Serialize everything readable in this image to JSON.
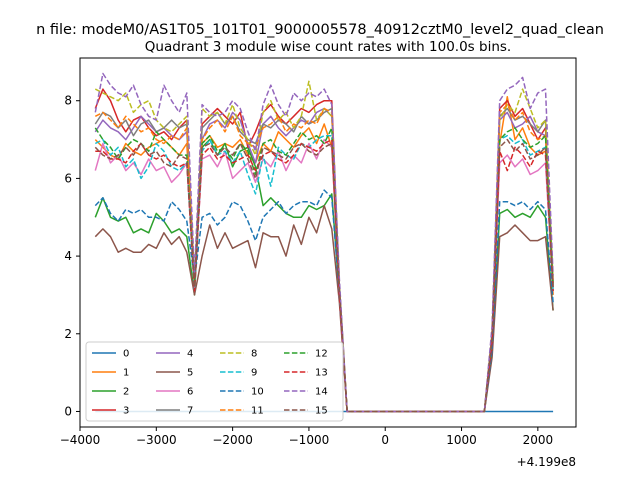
{
  "figure": {
    "suptitle": "n file: modeM0/AS1T05_101T01_9000005578_40912cztM0_level2_quad_clean",
    "title": "Quadrant 3 module wise count rates with 100.0s bins.",
    "x_offset_label": "+4.199e8"
  },
  "chart_data": {
    "type": "line",
    "title": "Quadrant 3 module wise count rates with 100.0s bins.",
    "xlabel": "",
    "ylabel": "",
    "x_offset": 419900000,
    "xlim": [
      -4000,
      2500
    ],
    "ylim": [
      -0.4,
      9.1
    ],
    "x_ticks": [
      -4000,
      -3000,
      -2000,
      -1000,
      0,
      1000,
      2000
    ],
    "x_tick_labels": [
      "−4000",
      "−3000",
      "−2000",
      "−1000",
      "0",
      "1000",
      "2000"
    ],
    "y_ticks": [
      0,
      2,
      4,
      6,
      8
    ],
    "y_tick_labels": [
      "0",
      "2",
      "4",
      "6",
      "8"
    ],
    "grid": false,
    "legend_position": "lower-left",
    "legend_columns": 4,
    "x": [
      -3800,
      -3700,
      -3600,
      -3500,
      -3400,
      -3300,
      -3200,
      -3100,
      -3000,
      -2900,
      -2800,
      -2700,
      -2600,
      -2500,
      -2400,
      -2300,
      -2200,
      -2100,
      -2000,
      -1900,
      -1800,
      -1700,
      -1600,
      -1500,
      -1400,
      -1300,
      -1200,
      -1100,
      -1000,
      -900,
      -800,
      -700,
      -600,
      -500,
      -400,
      -300,
      -200,
      -100,
      0,
      100,
      200,
      300,
      400,
      500,
      600,
      700,
      800,
      900,
      1000,
      1100,
      1200,
      1300,
      1400,
      1500,
      1600,
      1700,
      1800,
      1900,
      2000,
      2100,
      2200
    ],
    "series": [
      {
        "name": "0",
        "color": "#1f77b4",
        "style": "solid",
        "values": [
          0,
          0,
          0,
          0,
          0,
          0,
          0,
          0,
          0,
          0,
          0,
          0,
          0,
          0,
          0,
          0,
          0,
          0,
          0,
          0,
          0,
          0,
          0,
          0,
          0,
          0,
          0,
          0,
          0,
          0,
          0,
          0,
          0,
          0,
          0,
          0,
          0,
          0,
          0,
          0,
          0,
          0,
          0,
          0,
          0,
          0,
          0,
          0,
          0,
          0,
          0,
          0,
          0,
          0,
          0,
          0,
          0,
          0,
          0,
          0,
          0
        ]
      },
      {
        "name": "1",
        "color": "#ff7f0e",
        "style": "solid",
        "values": [
          7.0,
          6.8,
          6.6,
          6.5,
          6.9,
          6.7,
          6.6,
          6.8,
          6.9,
          7.0,
          6.8,
          6.6,
          6.9,
          3.3,
          6.9,
          7.1,
          6.8,
          6.9,
          6.8,
          7.0,
          6.6,
          6.4,
          6.9,
          6.7,
          7.2,
          7.0,
          6.8,
          7.1,
          7.3,
          6.9,
          7.4,
          6.8,
          3.0,
          0,
          0,
          0,
          0,
          0,
          0,
          0,
          0,
          0,
          0,
          0,
          0,
          0,
          0,
          0,
          0,
          0,
          0,
          0,
          1.8,
          6.9,
          8.1,
          7.0,
          7.3,
          6.8,
          6.6,
          6.7,
          3.0
        ]
      },
      {
        "name": "2",
        "color": "#2ca02c",
        "style": "solid",
        "values": [
          5.0,
          5.5,
          5.0,
          4.9,
          5.0,
          4.6,
          4.7,
          4.6,
          5.1,
          4.9,
          4.6,
          4.7,
          4.5,
          3.0,
          6.8,
          7.0,
          6.6,
          6.9,
          6.3,
          6.7,
          6.8,
          6.3,
          5.3,
          5.5,
          5.3,
          5.1,
          5.0,
          5.0,
          5.3,
          5.2,
          5.3,
          5.6,
          3.0,
          0,
          0,
          0,
          0,
          0,
          0,
          0,
          0,
          0,
          0,
          0,
          0,
          0,
          0,
          0,
          0,
          0,
          0,
          0,
          1.6,
          5.1,
          5.2,
          5.0,
          5.1,
          5.0,
          5.3,
          5.0,
          2.6
        ]
      },
      {
        "name": "3",
        "color": "#d62728",
        "style": "solid",
        "values": [
          7.8,
          8.3,
          8.0,
          7.5,
          7.2,
          7.5,
          7.6,
          7.3,
          7.1,
          7.2,
          7.0,
          7.3,
          7.5,
          3.3,
          7.4,
          7.6,
          7.8,
          7.6,
          7.4,
          7.7,
          6.8,
          7.2,
          7.7,
          7.9,
          7.6,
          7.4,
          7.6,
          7.8,
          7.7,
          7.9,
          8.0,
          8.0,
          3.2,
          0,
          0,
          0,
          0,
          0,
          0,
          0,
          0,
          0,
          0,
          0,
          0,
          0,
          0,
          0,
          0,
          0,
          0,
          0,
          2.0,
          7.8,
          8.0,
          7.6,
          7.8,
          7.4,
          7.0,
          7.3,
          3.3
        ]
      },
      {
        "name": "4",
        "color": "#9467bd",
        "style": "solid",
        "values": [
          7.2,
          7.5,
          7.3,
          7.2,
          7.0,
          7.3,
          7.6,
          7.4,
          7.2,
          7.3,
          7.1,
          7.0,
          7.2,
          3.3,
          7.0,
          7.4,
          7.5,
          7.3,
          7.7,
          7.5,
          6.9,
          6.4,
          7.4,
          7.6,
          7.3,
          7.1,
          7.3,
          7.5,
          7.4,
          7.7,
          7.8,
          7.6,
          3.1,
          0,
          0,
          0,
          0,
          0,
          0,
          0,
          0,
          0,
          0,
          0,
          0,
          0,
          0,
          0,
          0,
          0,
          0,
          0,
          1.9,
          7.5,
          7.7,
          7.3,
          7.4,
          7.6,
          7.2,
          7.1,
          3.2
        ]
      },
      {
        "name": "5",
        "color": "#8c564b",
        "style": "solid",
        "values": [
          4.5,
          4.7,
          4.5,
          4.1,
          4.2,
          4.1,
          4.1,
          4.3,
          4.2,
          4.6,
          4.3,
          4.5,
          4.1,
          3.0,
          4.0,
          4.8,
          4.2,
          4.6,
          4.2,
          4.3,
          4.4,
          3.7,
          4.6,
          4.5,
          4.5,
          4.0,
          4.8,
          4.3,
          5.0,
          4.6,
          5.3,
          4.7,
          2.8,
          0,
          0,
          0,
          0,
          0,
          0,
          0,
          0,
          0,
          0,
          0,
          0,
          0,
          0,
          0,
          0,
          0,
          0,
          0,
          1.4,
          4.5,
          4.6,
          4.8,
          4.6,
          4.4,
          4.4,
          4.5,
          2.6
        ]
      },
      {
        "name": "6",
        "color": "#e377c2",
        "style": "solid",
        "values": [
          6.2,
          6.9,
          6.4,
          6.6,
          6.2,
          6.4,
          6.1,
          6.5,
          6.2,
          6.3,
          5.9,
          6.1,
          6.4,
          3.2,
          6.5,
          6.6,
          6.3,
          6.7,
          6.0,
          6.2,
          6.4,
          5.9,
          6.5,
          6.3,
          6.7,
          6.2,
          6.6,
          6.4,
          6.9,
          6.5,
          7.0,
          6.8,
          3.0,
          0,
          0,
          0,
          0,
          0,
          0,
          0,
          0,
          0,
          0,
          0,
          0,
          0,
          0,
          0,
          0,
          0,
          0,
          0,
          1.9,
          6.4,
          6.6,
          6.3,
          6.5,
          6.1,
          6.2,
          6.4,
          3.1
        ]
      },
      {
        "name": "7",
        "color": "#7f7f7f",
        "style": "solid",
        "values": [
          7.4,
          7.7,
          7.6,
          7.3,
          7.5,
          7.1,
          7.4,
          7.5,
          7.2,
          7.3,
          7.5,
          7.3,
          7.4,
          3.3,
          7.3,
          7.5,
          7.7,
          7.4,
          7.6,
          7.2,
          7.0,
          6.9,
          7.4,
          7.3,
          7.5,
          7.4,
          7.2,
          7.6,
          7.4,
          7.5,
          7.7,
          7.8,
          3.2,
          0,
          0,
          0,
          0,
          0,
          0,
          0,
          0,
          0,
          0,
          0,
          0,
          0,
          0,
          0,
          0,
          0,
          0,
          0,
          2.0,
          7.6,
          7.8,
          7.5,
          7.6,
          7.4,
          7.2,
          7.5,
          3.3
        ]
      },
      {
        "name": "8",
        "color": "#bcbd22",
        "style": "dashed",
        "values": [
          8.3,
          8.2,
          8.1,
          8.0,
          8.2,
          7.7,
          7.9,
          8.0,
          7.5,
          7.3,
          7.2,
          7.4,
          7.6,
          3.5,
          7.8,
          7.6,
          7.7,
          7.4,
          7.9,
          7.3,
          7.0,
          6.6,
          7.7,
          8.0,
          7.5,
          7.7,
          7.3,
          7.6,
          8.5,
          7.5,
          7.8,
          7.6,
          3.3,
          0,
          0,
          0,
          0,
          0,
          0,
          0,
          0,
          0,
          0,
          0,
          0,
          0,
          0,
          0,
          0,
          0,
          0,
          0,
          2.1,
          7.5,
          7.9,
          7.7,
          8.3,
          7.8,
          7.3,
          7.5,
          3.4
        ]
      },
      {
        "name": "9",
        "color": "#17becf",
        "style": "dashed",
        "values": [
          6.9,
          7.0,
          6.6,
          6.8,
          6.3,
          6.5,
          6.0,
          6.3,
          6.9,
          6.7,
          6.3,
          6.2,
          6.4,
          3.1,
          6.7,
          7.0,
          6.6,
          6.7,
          6.4,
          6.7,
          6.1,
          5.6,
          6.6,
          5.8,
          6.8,
          6.6,
          6.5,
          6.9,
          6.8,
          7.0,
          7.1,
          7.1,
          3.1,
          0,
          0,
          0,
          0,
          0,
          0,
          0,
          0,
          0,
          0,
          0,
          0,
          0,
          0,
          0,
          0,
          0,
          0,
          0,
          1.8,
          7.0,
          7.1,
          6.9,
          7.0,
          6.6,
          6.7,
          6.8,
          3.1
        ]
      },
      {
        "name": "10",
        "color": "#1f77b4",
        "style": "dashed",
        "values": [
          5.3,
          5.5,
          5.1,
          4.9,
          5.2,
          5.1,
          5.2,
          5.0,
          5.0,
          4.9,
          5.4,
          5.2,
          4.9,
          3.4,
          5.0,
          5.1,
          4.8,
          5.0,
          5.4,
          5.3,
          4.9,
          4.4,
          5.0,
          5.2,
          5.4,
          5.1,
          5.3,
          5.4,
          5.4,
          5.3,
          5.7,
          5.5,
          3.0,
          0,
          0,
          0,
          0,
          0,
          0,
          0,
          0,
          0,
          0,
          0,
          0,
          0,
          0,
          0,
          0,
          0,
          0,
          0,
          1.6,
          5.4,
          5.4,
          5.3,
          5.4,
          5.2,
          5.4,
          5.2,
          2.8
        ]
      },
      {
        "name": "11",
        "color": "#ff7f0e",
        "style": "dashed",
        "values": [
          7.6,
          7.7,
          7.5,
          7.3,
          7.6,
          7.4,
          7.2,
          7.3,
          7.0,
          6.9,
          7.1,
          7.0,
          7.3,
          3.3,
          7.0,
          7.3,
          7.5,
          7.2,
          7.6,
          7.1,
          6.9,
          6.8,
          7.3,
          7.4,
          7.6,
          7.2,
          7.4,
          7.3,
          7.5,
          7.4,
          7.8,
          7.7,
          3.2,
          0,
          0,
          0,
          0,
          0,
          0,
          0,
          0,
          0,
          0,
          0,
          0,
          0,
          0,
          0,
          0,
          0,
          0,
          0,
          2.0,
          7.7,
          7.9,
          7.5,
          7.7,
          7.2,
          7.0,
          7.1,
          3.3
        ]
      },
      {
        "name": "12",
        "color": "#2ca02c",
        "style": "dashed",
        "values": [
          7.3,
          7.0,
          6.8,
          6.5,
          6.8,
          7.0,
          6.9,
          6.7,
          7.2,
          7.0,
          6.8,
          6.6,
          6.6,
          3.3,
          6.9,
          7.1,
          6.7,
          6.8,
          6.5,
          6.9,
          6.7,
          6.1,
          6.9,
          7.0,
          6.7,
          6.6,
          6.9,
          7.2,
          7.0,
          7.1,
          6.9,
          7.3,
          3.1,
          0,
          0,
          0,
          0,
          0,
          0,
          0,
          0,
          0,
          0,
          0,
          0,
          0,
          0,
          0,
          0,
          0,
          0,
          0,
          1.9,
          7.0,
          7.2,
          7.3,
          7.0,
          6.8,
          6.9,
          7.1,
          3.2
        ]
      },
      {
        "name": "13",
        "color": "#d62728",
        "style": "dashed",
        "values": [
          6.7,
          6.7,
          6.5,
          6.5,
          6.4,
          6.7,
          6.9,
          6.6,
          6.5,
          6.6,
          6.4,
          6.3,
          6.4,
          3.1,
          6.6,
          6.8,
          6.5,
          6.6,
          6.4,
          6.5,
          6.6,
          6.2,
          6.6,
          6.7,
          6.5,
          6.4,
          6.6,
          6.9,
          6.8,
          6.7,
          6.9,
          7.0,
          3.0,
          0,
          0,
          0,
          0,
          0,
          0,
          0,
          0,
          0,
          0,
          0,
          0,
          0,
          0,
          0,
          0,
          0,
          0,
          0,
          1.8,
          6.7,
          6.2,
          6.8,
          6.6,
          6.3,
          6.7,
          6.6,
          3.1
        ]
      },
      {
        "name": "14",
        "color": "#9467bd",
        "style": "dashed",
        "values": [
          7.7,
          8.7,
          8.4,
          8.2,
          8.1,
          8.4,
          7.9,
          7.6,
          7.5,
          8.4,
          8.0,
          7.7,
          8.2,
          3.5,
          7.9,
          7.7,
          7.6,
          7.7,
          8.0,
          7.8,
          7.2,
          6.7,
          7.9,
          8.4,
          7.9,
          7.6,
          8.2,
          8.0,
          8.2,
          8.1,
          8.3,
          7.9,
          3.4,
          0,
          0,
          0,
          0,
          0,
          0,
          0,
          0,
          0,
          0,
          0,
          0,
          0,
          0,
          0,
          0,
          0,
          0,
          0,
          2.2,
          8.0,
          8.3,
          8.4,
          8.6,
          7.8,
          8.2,
          8.3,
          3.5
        ]
      },
      {
        "name": "15",
        "color": "#8c564b",
        "style": "dashed",
        "values": [
          6.8,
          6.6,
          6.5,
          6.6,
          6.8,
          6.6,
          6.9,
          6.6,
          6.7,
          6.4,
          6.3,
          6.6,
          6.5,
          3.2,
          6.8,
          6.9,
          6.6,
          6.8,
          6.6,
          6.9,
          6.5,
          6.0,
          6.8,
          6.7,
          6.6,
          6.5,
          6.8,
          6.9,
          6.7,
          6.6,
          6.8,
          6.9,
          3.1,
          0,
          0,
          0,
          0,
          0,
          0,
          0,
          0,
          0,
          0,
          0,
          0,
          0,
          0,
          0,
          0,
          0,
          0,
          0,
          1.9,
          6.8,
          7.0,
          6.7,
          6.9,
          6.5,
          6.6,
          6.8,
          3.2
        ]
      }
    ]
  }
}
